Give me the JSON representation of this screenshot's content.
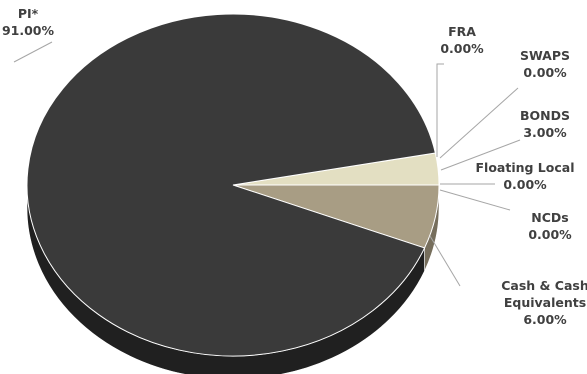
{
  "chart_data": {
    "type": "pie",
    "title": "",
    "categories": [
      "PI*",
      "FRA",
      "SWAPS",
      "BONDS",
      "Floating Local",
      "NCDs",
      "Cash & Cash Equivalents"
    ],
    "values": [
      91.0,
      0.0,
      0.0,
      3.0,
      0.0,
      0.0,
      6.0
    ],
    "value_labels": [
      "91.00%",
      "0.00%",
      "0.00%",
      "3.00%",
      "0.00%",
      "0.00%",
      "6.00%"
    ],
    "label_lines": [
      [
        "PI*"
      ],
      [
        "FRA"
      ],
      [
        "SWAPS"
      ],
      [
        "BONDS"
      ],
      [
        "Floating Local"
      ],
      [
        "NCDs"
      ],
      [
        "Cash & Cash",
        "Equivalents"
      ]
    ],
    "colors": [
      "#3a3a3a",
      "#d9d4b0",
      "#d9d4b0",
      "#e3dfc2",
      "#c9c2a0",
      "#b8ae8f",
      "#a89d84"
    ],
    "style": "3d-pie",
    "legend": "none"
  }
}
